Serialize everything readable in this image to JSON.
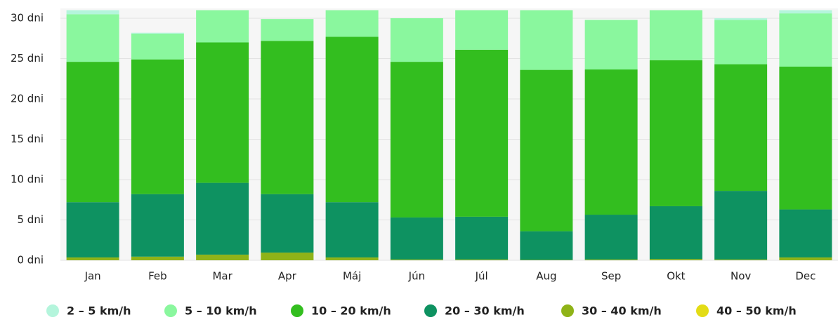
{
  "chart_data": {
    "type": "stacked_bar",
    "categories": [
      "Jan",
      "Feb",
      "Mar",
      "Apr",
      "Máj",
      "Jún",
      "Júl",
      "Aug",
      "Sep",
      "Okt",
      "Nov",
      "Dec"
    ],
    "series": [
      {
        "name": "40 – 50 km/h",
        "color": "#e3dc16",
        "values": [
          0,
          0,
          0,
          0,
          0,
          0,
          0,
          0,
          0,
          0,
          0,
          0
        ]
      },
      {
        "name": "30 – 40 km/h",
        "color": "#8fb318",
        "values": [
          0.35,
          0.45,
          0.7,
          0.95,
          0.35,
          0.1,
          0.1,
          0.05,
          0.1,
          0.15,
          0.1,
          0.35
        ]
      },
      {
        "name": "20 – 30 km/h",
        "color": "#0e9261",
        "values": [
          6.85,
          7.75,
          8.9,
          7.25,
          6.85,
          5.2,
          5.3,
          3.55,
          5.55,
          6.55,
          8.5,
          5.95
        ]
      },
      {
        "name": "10 – 20 km/h",
        "color": "#33be1f",
        "values": [
          17.4,
          16.7,
          17.4,
          19.0,
          20.5,
          19.3,
          20.7,
          20.0,
          18.0,
          18.1,
          15.7,
          17.7
        ]
      },
      {
        "name": "5 – 10 km/h",
        "color": "#8af79e",
        "values": [
          5.9,
          3.2,
          4.0,
          2.7,
          3.3,
          5.4,
          4.9,
          7.4,
          6.15,
          6.2,
          5.5,
          6.6
        ]
      },
      {
        "name": "2 – 5 km/h",
        "color": "#b4f5dc",
        "values": [
          0.5,
          0.1,
          0,
          0,
          0,
          0,
          0,
          0,
          0,
          0,
          0.2,
          0.4
        ]
      }
    ],
    "legend_order": [
      5,
      4,
      3,
      2,
      1,
      0
    ],
    "ylim": [
      0,
      31
    ],
    "yticks": [
      {
        "value": 0,
        "label": "0 dni"
      },
      {
        "value": 5,
        "label": "5 dni"
      },
      {
        "value": 10,
        "label": "10 dni"
      },
      {
        "value": 15,
        "label": "15 dni"
      },
      {
        "value": 20,
        "label": "20 dni"
      },
      {
        "value": 25,
        "label": "25 dni"
      },
      {
        "value": 30,
        "label": "30 dni"
      }
    ],
    "grid": true
  }
}
